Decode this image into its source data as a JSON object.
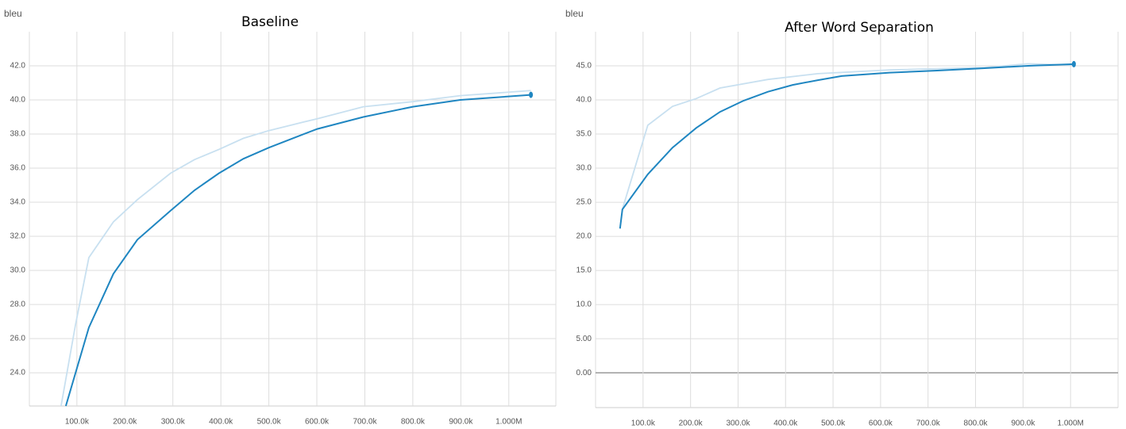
{
  "chart_data": [
    {
      "type": "line",
      "title": "Baseline",
      "y_label": "bleu",
      "xlim": [
        1000,
        1098000
      ],
      "ylim": [
        22.05,
        44
      ],
      "xticks": [
        {
          "value": 100000,
          "label": "100.0k"
        },
        {
          "value": 200000,
          "label": "200.0k"
        },
        {
          "value": 300000,
          "label": "300.0k"
        },
        {
          "value": 400000,
          "label": "400.0k"
        },
        {
          "value": 500000,
          "label": "500.0k"
        },
        {
          "value": 600000,
          "label": "600.0k"
        },
        {
          "value": 700000,
          "label": "700.0k"
        },
        {
          "value": 800000,
          "label": "800.0k"
        },
        {
          "value": 900000,
          "label": "900.0k"
        },
        {
          "value": 1000000,
          "label": "1.000M"
        }
      ],
      "yticks": [
        {
          "value": 24,
          "label": "24.0"
        },
        {
          "value": 26,
          "label": "26.0"
        },
        {
          "value": 28,
          "label": "28.0"
        },
        {
          "value": 30,
          "label": "30.0"
        },
        {
          "value": 32,
          "label": "32.0"
        },
        {
          "value": 34,
          "label": "34.0"
        },
        {
          "value": 36,
          "label": "36.0"
        },
        {
          "value": 38,
          "label": "38.0"
        },
        {
          "value": 40,
          "label": "40.0"
        },
        {
          "value": 42,
          "label": "42.0"
        }
      ],
      "grid": true,
      "series": [
        {
          "color": "#c8e0f0",
          "x": [
            67000,
            97000,
            125000,
            176000,
            226000,
            295000,
            345000,
            396000,
            447000,
            500000,
            550000,
            601000,
            697000,
            800000,
            899000,
            1046000
          ],
          "values": [
            22.05,
            26.8,
            30.75,
            32.85,
            34.15,
            35.7,
            36.5,
            37.1,
            37.75,
            38.2,
            38.55,
            38.9,
            39.6,
            39.9,
            40.25,
            40.55
          ]
        },
        {
          "color": "#1f86c1",
          "x": [
            77000,
            125000,
            176000,
            226000,
            295000,
            345000,
            396000,
            447000,
            500000,
            550000,
            601000,
            697000,
            800000,
            899000,
            1046000
          ],
          "values": [
            22.05,
            26.65,
            29.8,
            31.8,
            33.5,
            34.7,
            35.7,
            36.55,
            37.2,
            37.75,
            38.3,
            39.0,
            39.6,
            40.0,
            40.3
          ]
        }
      ]
    },
    {
      "type": "line",
      "title": "After Word Separation",
      "y_label": "bleu",
      "xlim": [
        0,
        1100000
      ],
      "ylim": [
        -5.1,
        50
      ],
      "xticks": [
        {
          "value": 100000,
          "label": "100.0k"
        },
        {
          "value": 200000,
          "label": "200.0k"
        },
        {
          "value": 300000,
          "label": "300.0k"
        },
        {
          "value": 400000,
          "label": "400.0k"
        },
        {
          "value": 500000,
          "label": "500.0k"
        },
        {
          "value": 600000,
          "label": "600.0k"
        },
        {
          "value": 700000,
          "label": "700.0k"
        },
        {
          "value": 800000,
          "label": "800.0k"
        },
        {
          "value": 900000,
          "label": "900.0k"
        },
        {
          "value": 1000000,
          "label": "1.000M"
        }
      ],
      "yticks": [
        {
          "value": 0,
          "label": "0.00"
        },
        {
          "value": 5,
          "label": "5.00"
        },
        {
          "value": 10,
          "label": "10.0"
        },
        {
          "value": 15,
          "label": "15.0"
        },
        {
          "value": 20,
          "label": "20.0"
        },
        {
          "value": 25,
          "label": "25.0"
        },
        {
          "value": 30,
          "label": "30.0"
        },
        {
          "value": 35,
          "label": "35.0"
        },
        {
          "value": 40,
          "label": "40.0"
        },
        {
          "value": 45,
          "label": "45.0"
        }
      ],
      "grid": true,
      "series": [
        {
          "color": "#c8e0f0",
          "x": [
            56500,
            110000,
            162000,
            212000,
            262000,
            363000,
            468000,
            619000,
            819000,
            911000,
            1007000
          ],
          "values": [
            24.0,
            36.3,
            39.05,
            40.2,
            41.75,
            43.0,
            43.85,
            44.4,
            44.75,
            45.3,
            45.1
          ]
        },
        {
          "color": "#1f86c1",
          "x": [
            51500,
            56500,
            110000,
            162000,
            212000,
            262000,
            312000,
            363000,
            415000,
            468000,
            518000,
            619000,
            719000,
            819000,
            911000,
            1007000
          ],
          "values": [
            21.15,
            23.95,
            29.1,
            33.0,
            35.9,
            38.25,
            39.9,
            41.2,
            42.2,
            42.9,
            43.5,
            44.0,
            44.3,
            44.65,
            45.0,
            45.25
          ]
        }
      ]
    }
  ]
}
